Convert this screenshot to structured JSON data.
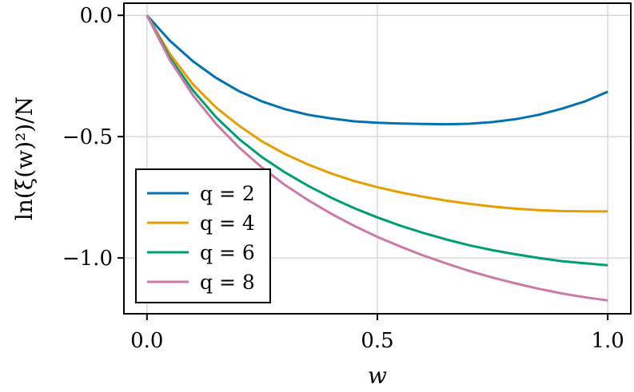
{
  "chart_data": {
    "type": "line",
    "xlabel": "w",
    "ylabel": "ln(ξ(w)²)/N",
    "xlim": [
      -0.05,
      1.05
    ],
    "ylim": [
      -1.23,
      0.05
    ],
    "xticks": [
      0.0,
      0.5,
      1.0
    ],
    "xtick_labels": [
      "0.0",
      "0.5",
      "1.0"
    ],
    "yticks": [
      0.0,
      -0.5,
      -1.0
    ],
    "ytick_labels": [
      "0.0",
      "−0.5",
      "−1.0"
    ],
    "grid": true,
    "legend_position": "bottom-left",
    "x": [
      0.0,
      0.05,
      0.1,
      0.15,
      0.2,
      0.25,
      0.3,
      0.35,
      0.4,
      0.45,
      0.5,
      0.55,
      0.6,
      0.65,
      0.7,
      0.75,
      0.8,
      0.85,
      0.9,
      0.95,
      1.0
    ],
    "series": [
      {
        "name": "q = 2",
        "color": "#0072b2",
        "values": [
          0.0,
          -0.105,
          -0.19,
          -0.258,
          -0.313,
          -0.355,
          -0.387,
          -0.41,
          -0.425,
          -0.437,
          -0.443,
          -0.446,
          -0.448,
          -0.449,
          -0.447,
          -0.44,
          -0.428,
          -0.41,
          -0.385,
          -0.355,
          -0.315
        ]
      },
      {
        "name": "q = 4",
        "color": "#e69f00",
        "values": [
          0.0,
          -0.16,
          -0.285,
          -0.38,
          -0.455,
          -0.52,
          -0.572,
          -0.615,
          -0.652,
          -0.683,
          -0.708,
          -0.73,
          -0.748,
          -0.764,
          -0.777,
          -0.788,
          -0.797,
          -0.803,
          -0.807,
          -0.808,
          -0.808
        ]
      },
      {
        "name": "q = 6",
        "color": "#009e73",
        "values": [
          0.0,
          -0.175,
          -0.31,
          -0.42,
          -0.51,
          -0.585,
          -0.648,
          -0.703,
          -0.752,
          -0.795,
          -0.833,
          -0.867,
          -0.897,
          -0.924,
          -0.948,
          -0.968,
          -0.985,
          -1.0,
          -1.013,
          -1.022,
          -1.03
        ]
      },
      {
        "name": "q = 8",
        "color": "#cc79a7",
        "values": [
          0.0,
          -0.185,
          -0.33,
          -0.448,
          -0.545,
          -0.628,
          -0.7,
          -0.762,
          -0.818,
          -0.868,
          -0.913,
          -0.953,
          -0.99,
          -1.023,
          -1.054,
          -1.081,
          -1.105,
          -1.127,
          -1.146,
          -1.162,
          -1.175
        ]
      }
    ]
  }
}
